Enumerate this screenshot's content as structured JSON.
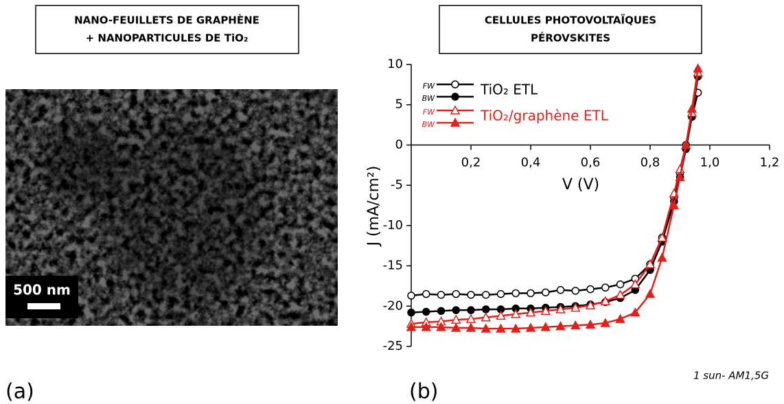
{
  "panel_a": {
    "box_lines": [
      "NANO-FEUILLETS DE GRAPHÈNE",
      "+ NANOPARTICULES DE TiO₂"
    ],
    "scale_bar": "500 nm",
    "label": "(a)"
  },
  "panel_b_label": "(b)",
  "chart_data": {
    "type": "line",
    "title_lines": [
      "CELLULES PHOTOVOLTAÏQUES",
      "PÉROVSKITES"
    ],
    "x_label": "V (V)",
    "y_label": "J (mA/cm²)",
    "annotation": "1 sun- AM1,5G",
    "xlim": [
      0,
      1.2
    ],
    "ylim": [
      -25,
      10
    ],
    "xticks": [
      {
        "value": 0.2,
        "label": "0,2"
      },
      {
        "value": 0.4,
        "label": "0,4"
      },
      {
        "value": 0.6,
        "label": "0,6"
      },
      {
        "value": 0.8,
        "label": "0,8"
      },
      {
        "value": 1.0,
        "label": "1,0"
      },
      {
        "value": 1.2,
        "label": "1,2"
      }
    ],
    "yticks": [
      -25,
      -20,
      -15,
      -10,
      -5,
      0,
      5,
      10
    ],
    "x": [
      0,
      0.05,
      0.1,
      0.15,
      0.2,
      0.25,
      0.3,
      0.35,
      0.4,
      0.45,
      0.5,
      0.55,
      0.6,
      0.65,
      0.7,
      0.75,
      0.8,
      0.84,
      0.88,
      0.9,
      0.92,
      0.94,
      0.96
    ],
    "groups": [
      {
        "label": "TiO₂ ETL",
        "color": "#000000",
        "series": [
          {
            "name": "FW",
            "marker": "circle",
            "filled": false,
            "values": [
              -18.7,
              -18.5,
              -18.6,
              -18.5,
              -18.6,
              -18.6,
              -18.5,
              -18.4,
              -18.4,
              -18.3,
              -18.0,
              -18.1,
              -17.9,
              -17.7,
              -17.3,
              -16.6,
              -14.8,
              -11.5,
              -6.5,
              -3.5,
              0,
              3.5,
              6.5
            ]
          },
          {
            "name": "BW",
            "marker": "circle",
            "filled": true,
            "values": [
              -20.8,
              -20.7,
              -20.6,
              -20.5,
              -20.5,
              -20.4,
              -20.4,
              -20.3,
              -20.3,
              -20.2,
              -20.1,
              -20.0,
              -19.8,
              -19.5,
              -19.0,
              -18.0,
              -15.5,
              -12,
              -7,
              -4,
              -0.5,
              3.5,
              8.5
            ]
          }
        ]
      },
      {
        "label": "TiO₂/graphène ETL",
        "color": "#e0201b",
        "series": [
          {
            "name": "FW",
            "marker": "triangle",
            "filled": false,
            "values": [
              -22.2,
              -22.0,
              -21.9,
              -21.7,
              -21.6,
              -21.4,
              -21.2,
              -21.0,
              -20.8,
              -20.6,
              -20.4,
              -20.2,
              -19.9,
              -19.4,
              -18.6,
              -17.3,
              -14.8,
              -11.5,
              -6.0,
              -3,
              0,
              4,
              9
            ]
          },
          {
            "name": "BW",
            "marker": "triangle",
            "filled": true,
            "values": [
              -22.6,
              -22.6,
              -22.6,
              -22.7,
              -22.7,
              -22.8,
              -22.8,
              -22.8,
              -22.7,
              -22.6,
              -22.5,
              -22.4,
              -22.3,
              -22.1,
              -21.6,
              -20.8,
              -18.5,
              -14.0,
              -7.5,
              -4,
              0,
              4.5,
              9.5
            ]
          }
        ]
      }
    ]
  }
}
